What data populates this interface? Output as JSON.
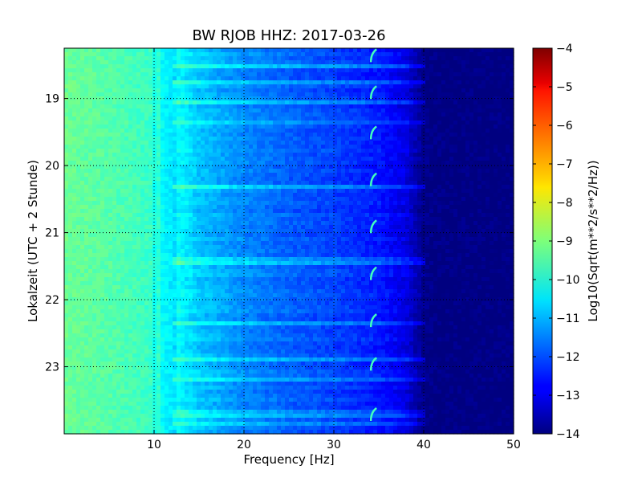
{
  "chart_data": {
    "type": "heatmap",
    "title": "BW RJOB HHZ: 2017-03-26",
    "xlabel": "Frequency [Hz]",
    "ylabel": "Lokalzeit (UTC + 2 Stunde)",
    "xlim": [
      0,
      50
    ],
    "ylim": [
      18.25,
      24
    ],
    "y_inverted": true,
    "x_ticks": [
      10,
      20,
      30,
      40,
      50
    ],
    "y_ticks": [
      19,
      20,
      21,
      22,
      23
    ],
    "grid": true,
    "colormap": "jet",
    "colorbar": {
      "label": "Log10(Sqrt(m**2/s**2/Hz))",
      "range": [
        -14,
        -4
      ],
      "ticks": [
        -4,
        -5,
        -6,
        -7,
        -8,
        -9,
        -10,
        -11,
        -12,
        -13,
        -14
      ]
    },
    "spectrum_profile": {
      "frequency_hz": [
        0,
        5,
        10,
        13,
        15,
        20,
        25,
        30,
        35,
        38,
        40,
        42,
        50
      ],
      "log10_amplitude": [
        -9.2,
        -9.4,
        -9.7,
        -10.3,
        -10.8,
        -11.4,
        -11.8,
        -12.1,
        -12.5,
        -13.0,
        -13.9,
        -14,
        -14
      ]
    },
    "narrowband_lines_hz": [
      10.2,
      10.9,
      11.3,
      11.8,
      12.4
    ],
    "feature_near_hz": 34.3,
    "feature_times": [
      18.35,
      18.9,
      19.5,
      20.2,
      20.9,
      21.6,
      22.3,
      22.95,
      23.7
    ]
  }
}
